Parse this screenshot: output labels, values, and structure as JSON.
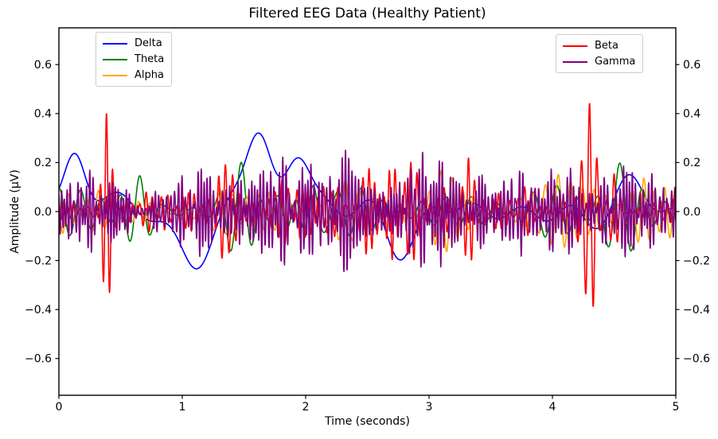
{
  "chart_data": {
    "type": "line",
    "title": "Filtered EEG Data (Healthy Patient)",
    "xlabel": "Time (seconds)",
    "ylabel": "Amplitude (µV)",
    "xlim": [
      0,
      5
    ],
    "ylim": [
      -0.75,
      0.75
    ],
    "xticks": [
      0,
      1,
      2,
      3,
      4,
      5
    ],
    "xtick_labels": [
      "0",
      "1",
      "2",
      "3",
      "4",
      "5"
    ],
    "yticks": [
      0.6,
      0.4,
      0.2,
      0.0,
      -0.2,
      -0.4,
      -0.6
    ],
    "ytick_labels": [
      "0.6",
      "0.4",
      "0.2",
      "0.0",
      "−0.2",
      "−0.4",
      "−0.6"
    ],
    "mirror_y_axis": true,
    "grid": false,
    "background": "#ffffff",
    "spine_color": "#000000",
    "line_width": 1.6,
    "duration_seconds": 5,
    "sample_rate_hz": 600,
    "legends": [
      {
        "position": "upper-left",
        "entries": [
          "Delta",
          "Theta",
          "Alpha"
        ]
      },
      {
        "position": "upper-right",
        "entries": [
          "Beta",
          "Gamma"
        ]
      }
    ],
    "series": [
      {
        "name": "Delta",
        "color": "#0000ff",
        "band_hz": [
          0.8,
          3.5
        ],
        "components": 5,
        "base_amplitude": 0.045,
        "envelope_depth": 0.6,
        "seed": 101,
        "bursts": [
          {
            "t": 0.13,
            "amp": 0.3,
            "freq": 0,
            "sigma": 0.09
          },
          {
            "t": 1.1,
            "amp": -0.16,
            "freq": 0,
            "sigma": 0.15
          },
          {
            "t": 1.62,
            "amp": 0.3,
            "freq": 0,
            "sigma": 0.1
          },
          {
            "t": 1.93,
            "amp": 0.28,
            "freq": 0,
            "sigma": 0.1
          },
          {
            "t": 2.75,
            "amp": -0.12,
            "freq": 0,
            "sigma": 0.12
          },
          {
            "t": 4.3,
            "amp": -0.06,
            "freq": 0,
            "sigma": 0.1
          },
          {
            "t": 4.62,
            "amp": 0.12,
            "freq": 0,
            "sigma": 0.12
          }
        ]
      },
      {
        "name": "Theta",
        "color": "#008000",
        "band_hz": [
          4,
          7.5
        ],
        "components": 6,
        "base_amplitude": 0.05,
        "envelope_depth": 0.7,
        "seed": 202,
        "bursts": [
          {
            "t": 0.65,
            "amp": 0.12,
            "freq": 6,
            "sigma": 0.1
          },
          {
            "t": 1.48,
            "amp": 0.22,
            "freq": 5.5,
            "sigma": 0.12
          },
          {
            "t": 2.05,
            "amp": 0.12,
            "freq": 6,
            "sigma": 0.1
          },
          {
            "t": 4.55,
            "amp": 0.16,
            "freq": 5,
            "sigma": 0.12
          }
        ]
      },
      {
        "name": "Alpha",
        "color": "#ffa500",
        "band_hz": [
          8,
          12.5
        ],
        "components": 7,
        "base_amplitude": 0.055,
        "envelope_depth": 0.7,
        "seed": 303,
        "bursts": [
          {
            "t": 0.32,
            "amp": 0.1,
            "freq": 10,
            "sigma": 0.1
          },
          {
            "t": 1.42,
            "amp": 0.14,
            "freq": 10,
            "sigma": 0.1
          },
          {
            "t": 2.32,
            "amp": 0.16,
            "freq": 9.5,
            "sigma": 0.1
          },
          {
            "t": 3.1,
            "amp": 0.1,
            "freq": 10,
            "sigma": 0.1
          },
          {
            "t": 4.05,
            "amp": 0.14,
            "freq": 10,
            "sigma": 0.1
          },
          {
            "t": 4.75,
            "amp": 0.1,
            "freq": 10,
            "sigma": 0.08
          }
        ]
      },
      {
        "name": "Beta",
        "color": "#ff0000",
        "band_hz": [
          13,
          28
        ],
        "components": 8,
        "base_amplitude": 0.06,
        "envelope_depth": 0.85,
        "seed": 404,
        "bursts": [
          {
            "t": 0.385,
            "amp": 0.38,
            "freq": 19,
            "sigma": 0.035
          },
          {
            "t": 1.35,
            "amp": 0.18,
            "freq": 18,
            "sigma": 0.06
          },
          {
            "t": 2.9,
            "amp": 0.14,
            "freq": 22,
            "sigma": 0.05
          },
          {
            "t": 3.32,
            "amp": 0.18,
            "freq": 20,
            "sigma": 0.05
          },
          {
            "t": 4.3,
            "amp": 0.44,
            "freq": 16,
            "sigma": 0.05
          },
          {
            "t": 4.5,
            "amp": 0.16,
            "freq": 18,
            "sigma": 0.04
          }
        ]
      },
      {
        "name": "Gamma",
        "color": "#800080",
        "band_hz": [
          30,
          48
        ],
        "components": 10,
        "base_amplitude": 0.09,
        "envelope_depth": 0.6,
        "seed": 505,
        "bursts": [
          {
            "t": 1.3,
            "amp": 0.1,
            "freq": 40,
            "sigma": 0.1
          },
          {
            "t": 2.35,
            "amp": 0.14,
            "freq": 38,
            "sigma": 0.08
          },
          {
            "t": 3.0,
            "amp": 0.1,
            "freq": 36,
            "sigma": 0.1
          }
        ]
      }
    ]
  }
}
